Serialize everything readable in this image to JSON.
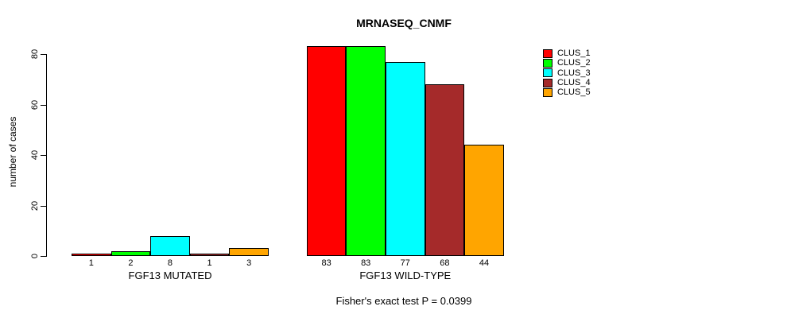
{
  "title": "MRNASEQ_CNMF",
  "ylabel": "number of cases",
  "footer": "Fisher's exact test P = 0.0399",
  "chart_data": {
    "type": "bar",
    "title": "MRNASEQ_CNMF",
    "ylabel": "number of cases",
    "xlabel": "",
    "annotation": "Fisher's exact test P = 0.0399",
    "categories": [
      "FGF13 MUTATED",
      "FGF13 WILD-TYPE"
    ],
    "series": [
      {
        "name": "CLUS_1",
        "color": "#FF0000",
        "values": [
          1,
          83
        ]
      },
      {
        "name": "CLUS_2",
        "color": "#00FF00",
        "values": [
          2,
          83
        ]
      },
      {
        "name": "CLUS_3",
        "color": "#00FFFF",
        "values": [
          8,
          77
        ]
      },
      {
        "name": "CLUS_4",
        "color": "#A52A2A",
        "values": [
          1,
          68
        ]
      },
      {
        "name": "CLUS_5",
        "color": "#FFA500",
        "values": [
          3,
          44
        ]
      }
    ],
    "bar_value_labels": [
      [
        "1",
        "2",
        "8",
        "1",
        "3"
      ],
      [
        "83",
        "83",
        "77",
        "68",
        "44"
      ]
    ],
    "yticks": [
      "0",
      "20",
      "40",
      "60",
      "80"
    ],
    "ylim": [
      0,
      83
    ],
    "grid": false,
    "legend_position": "right",
    "bar_border_color": "#000000"
  }
}
